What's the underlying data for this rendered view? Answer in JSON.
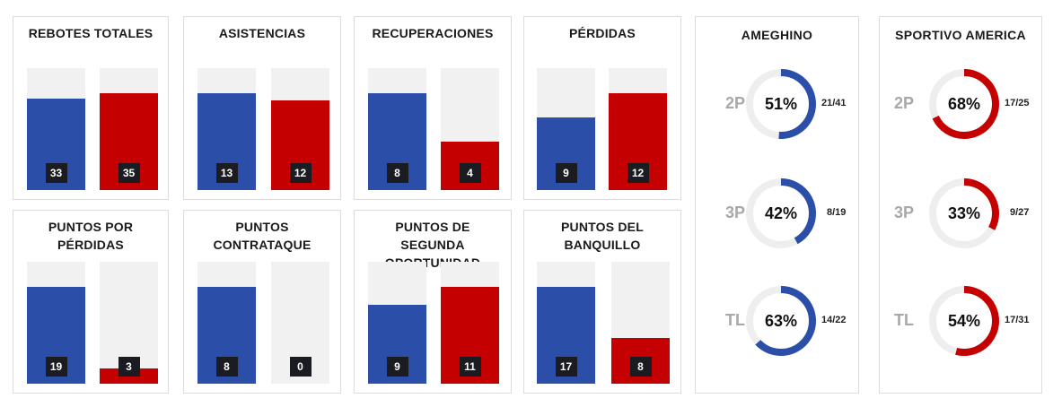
{
  "colors": {
    "home": "#2b4fa8",
    "away": "#c50000",
    "track": "#f1f1f1",
    "badge": "#1b1b22",
    "code": "#a8a8a8"
  },
  "chart_data": [
    {
      "type": "bar",
      "title": "REBOTES TOTALES",
      "categories": [
        "AMEGHINO",
        "SPORTIVO AMERICA"
      ],
      "values": [
        33,
        35
      ],
      "labels": [
        "33",
        "35"
      ]
    },
    {
      "type": "bar",
      "title": "ASISTENCIAS",
      "categories": [
        "AMEGHINO",
        "SPORTIVO AMERICA"
      ],
      "values": [
        13,
        12
      ],
      "labels": [
        "13",
        "12"
      ]
    },
    {
      "type": "bar",
      "title": "RECUPERACIONES",
      "categories": [
        "AMEGHINO",
        "SPORTIVO AMERICA"
      ],
      "values": [
        8,
        4
      ],
      "labels": [
        "8",
        "4"
      ]
    },
    {
      "type": "bar",
      "title": "PÉRDIDAS",
      "categories": [
        "AMEGHINO",
        "SPORTIVO AMERICA"
      ],
      "values": [
        9,
        12
      ],
      "labels": [
        "9",
        "12"
      ]
    },
    {
      "type": "bar",
      "title": "PUNTOS POR PÉRDIDAS",
      "categories": [
        "AMEGHINO",
        "SPORTIVO AMERICA"
      ],
      "values": [
        19,
        3
      ],
      "labels": [
        "19",
        "3"
      ]
    },
    {
      "type": "bar",
      "title": "PUNTOS CONTRATAQUE",
      "categories": [
        "AMEGHINO",
        "SPORTIVO AMERICA"
      ],
      "values": [
        8,
        0
      ],
      "labels": [
        "8",
        "0"
      ]
    },
    {
      "type": "bar",
      "title": "PUNTOS DE SEGUNDA OPORTUNIDAD",
      "categories": [
        "AMEGHINO",
        "SPORTIVO AMERICA"
      ],
      "values": [
        9,
        11
      ],
      "labels": [
        "9",
        "11"
      ]
    },
    {
      "type": "bar",
      "title": "PUNTOS DEL BANQUILLO",
      "categories": [
        "AMEGHINO",
        "SPORTIVO AMERICA"
      ],
      "values": [
        17,
        8
      ],
      "labels": [
        "17",
        "8"
      ]
    },
    {
      "type": "pie",
      "title": "AMEGHINO",
      "stats": [
        {
          "code": "2P",
          "pct": 51,
          "pct_label": "51%",
          "fraction": "21/41"
        },
        {
          "code": "3P",
          "pct": 42,
          "pct_label": "42%",
          "fraction": "8/19"
        },
        {
          "code": "TL",
          "pct": 63,
          "pct_label": "63%",
          "fraction": "14/22"
        }
      ]
    },
    {
      "type": "pie",
      "title": "SPORTIVO AMERICA",
      "stats": [
        {
          "code": "2P",
          "pct": 68,
          "pct_label": "68%",
          "fraction": "17/25"
        },
        {
          "code": "3P",
          "pct": 33,
          "pct_label": "33%",
          "fraction": "9/27"
        },
        {
          "code": "TL",
          "pct": 54,
          "pct_label": "54%",
          "fraction": "17/31"
        }
      ]
    }
  ]
}
